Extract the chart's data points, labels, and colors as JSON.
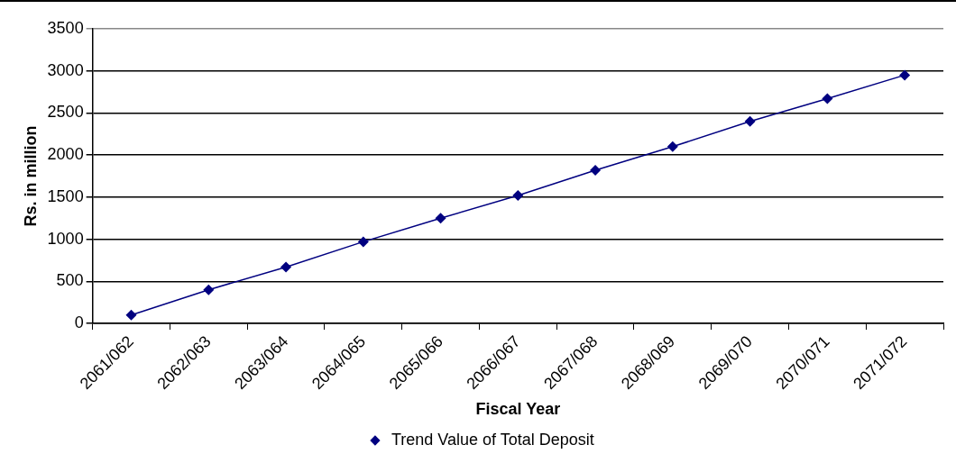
{
  "chart_data": {
    "type": "line",
    "xlabel": "Fiscal Year",
    "ylabel": "Rs. in million",
    "categories": [
      "2061/062",
      "2062/063",
      "2063/064",
      "2064/065",
      "2065/066",
      "2066/067",
      "2067/068",
      "2068/069",
      "2069/070",
      "2070/071",
      "2071/072"
    ],
    "series": [
      {
        "name": "Trend Value of Total Deposit",
        "color": "#000080",
        "values": [
          100,
          400,
          670,
          970,
          1250,
          1520,
          1820,
          2100,
          2400,
          2670,
          2950
        ]
      }
    ],
    "ylim": [
      0,
      3500
    ],
    "yticks": [
      0,
      500,
      1000,
      1500,
      2000,
      2500,
      3000,
      3500
    ],
    "grid": "y",
    "legend": "bottom",
    "marker": "diamond",
    "line_style": "solid"
  }
}
